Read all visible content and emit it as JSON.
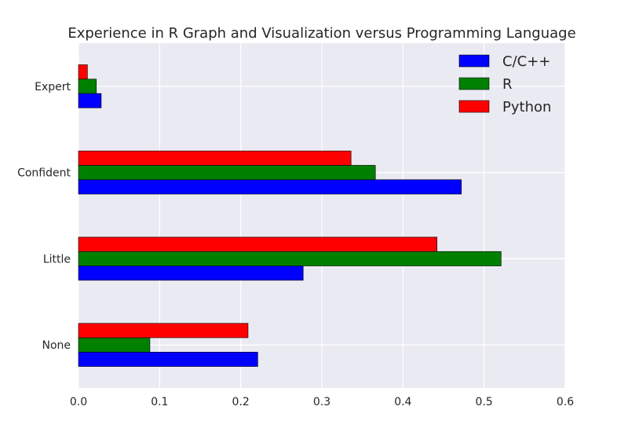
{
  "chart_data": {
    "type": "bar",
    "orientation": "horizontal",
    "title": "Experience in R Graph and Visualization versus Programming Language",
    "xlabel": "",
    "ylabel": "",
    "xlim": [
      0.0,
      0.6
    ],
    "xticks": [
      "0.0",
      "0.1",
      "0.2",
      "0.3",
      "0.4",
      "0.5",
      "0.6"
    ],
    "categories": [
      "None",
      "Little",
      "Confident",
      "Expert"
    ],
    "series": [
      {
        "name": "C/C++",
        "color": "#0000ff",
        "values": [
          0.221,
          0.277,
          0.472,
          0.028
        ]
      },
      {
        "name": "R",
        "color": "#008000",
        "values": [
          0.088,
          0.521,
          0.366,
          0.022
        ]
      },
      {
        "name": "Python",
        "color": "#ff0000",
        "values": [
          0.209,
          0.442,
          0.336,
          0.011
        ]
      }
    ],
    "grid": true,
    "legend_position": "top-right"
  }
}
